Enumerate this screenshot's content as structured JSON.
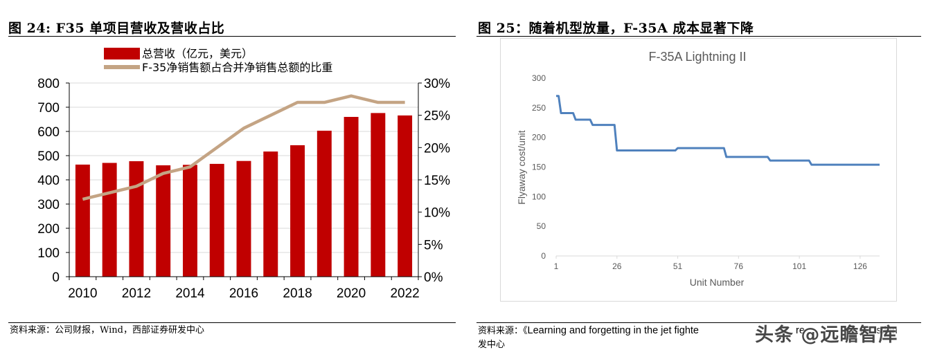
{
  "left_figure": {
    "title": "图 24: F35 单项目营收及营收占比",
    "source": "资料来源：公司财报，Wind，西部证券研发中心"
  },
  "right_figure": {
    "title": "图 25：随着机型放量，F-35A 成本显著下降",
    "source_prefix": "资料来源：《",
    "source_latin": "Learning and forgetting in the jet fighte",
    "source_latin_2": "re",
    "source_latin_3": "in",
    "source_latin_4": "stion",
    "source_line2": "发中心"
  },
  "watermark": {
    "text": "头条 @远瞻智库"
  },
  "colors": {
    "bar": "#c00000",
    "share_line": "#c4a484",
    "cost_line": "#4f81bd",
    "axis_gray": "#7f7f7f",
    "grid_light": "#d9d9d9"
  },
  "chart_data": [
    {
      "type": "bar",
      "legend": {
        "bar_label": "总营收（亿元，美元）",
        "line_label": "F-35净销售额占合并净销售总额的比重"
      },
      "x_ticks": [
        "2010",
        "2012",
        "2014",
        "2016",
        "2018",
        "2020",
        "2022"
      ],
      "categories": [
        "2010",
        "2011",
        "2012",
        "2013",
        "2014",
        "2015",
        "2016",
        "2017",
        "2018",
        "2019",
        "2020",
        "2021",
        "2022"
      ],
      "series": [
        {
          "name": "总营收（亿元，美元）",
          "type": "bar",
          "axis": "left",
          "values": [
            463,
            470,
            477,
            460,
            462,
            466,
            478,
            517,
            543,
            603,
            660,
            676,
            666
          ]
        },
        {
          "name": "F-35净销售额占合并净销售总额的比重",
          "type": "line",
          "axis": "right",
          "values": [
            12,
            13,
            14,
            16,
            17,
            20,
            23,
            25,
            27,
            27,
            28,
            27,
            27
          ]
        }
      ],
      "y_left": {
        "ticks": [
          "0",
          "100",
          "200",
          "300",
          "400",
          "500",
          "600",
          "700",
          "800"
        ],
        "ylim": [
          0,
          800
        ]
      },
      "y_right": {
        "ticks": [
          "0%",
          "5%",
          "10%",
          "15%",
          "20%",
          "25%",
          "30%"
        ],
        "ylim": [
          0,
          30
        ]
      },
      "grid": true
    },
    {
      "type": "line",
      "title": "F-35A Lightning II",
      "xlabel": "Unit Number",
      "ylabel": "Flyaway cost/unit",
      "x_ticks": [
        "1",
        "26",
        "51",
        "76",
        "101",
        "126"
      ],
      "y_ticks": [
        "0",
        "50",
        "100",
        "150",
        "200",
        "250",
        "300"
      ],
      "xlim": [
        1,
        134
      ],
      "ylim": [
        0,
        300
      ],
      "grid": false,
      "series": [
        {
          "points": [
            [
              1,
              270
            ],
            [
              2,
              270
            ],
            [
              3,
              241
            ],
            [
              8,
              241
            ],
            [
              9,
              230
            ],
            [
              15,
              230
            ],
            [
              16,
              221
            ],
            [
              25,
              221
            ],
            [
              26,
              178
            ],
            [
              50,
              178
            ],
            [
              51,
              182
            ],
            [
              70,
              182
            ],
            [
              71,
              167
            ],
            [
              88,
              167
            ],
            [
              89,
              161
            ],
            [
              105,
              161
            ],
            [
              106,
              154
            ],
            [
              134,
              154
            ]
          ]
        }
      ]
    }
  ]
}
